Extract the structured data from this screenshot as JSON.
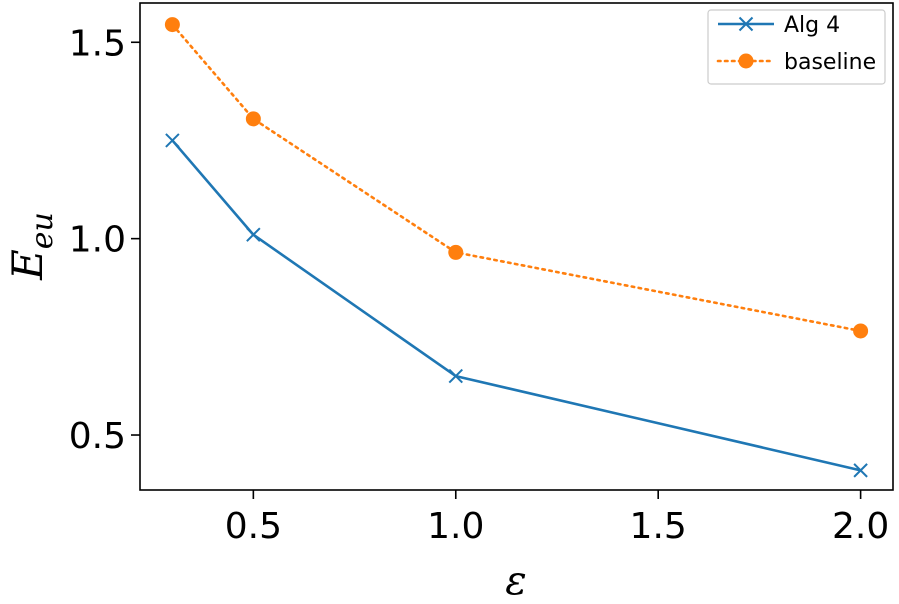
{
  "chart_data": {
    "type": "line",
    "title": "",
    "xlabel": "ε",
    "ylabel_main": "E",
    "ylabel_sub": "eu",
    "xlim": [
      0.22,
      2.08
    ],
    "ylim": [
      0.36,
      1.6
    ],
    "xticks": [
      0.5,
      1.0,
      1.5,
      2.0
    ],
    "xtick_labels": [
      "0.5",
      "1.0",
      "1.5",
      "2.0"
    ],
    "yticks": [
      0.5,
      1.0,
      1.5
    ],
    "ytick_labels": [
      "0.5",
      "1.0",
      "1.5"
    ],
    "grid": false,
    "legend_position": "top-right",
    "series": [
      {
        "name": "Alg 4",
        "color": "#1f77b4",
        "line_style": "solid",
        "marker": "x",
        "x": [
          0.3,
          0.5,
          1.0,
          2.0
        ],
        "y": [
          1.25,
          1.01,
          0.65,
          0.41
        ]
      },
      {
        "name": "baseline",
        "color": "#ff7f0e",
        "line_style": "dotted",
        "marker": "circle",
        "x": [
          0.3,
          0.5,
          1.0,
          2.0
        ],
        "y": [
          1.545,
          1.305,
          0.965,
          0.765
        ]
      }
    ]
  }
}
